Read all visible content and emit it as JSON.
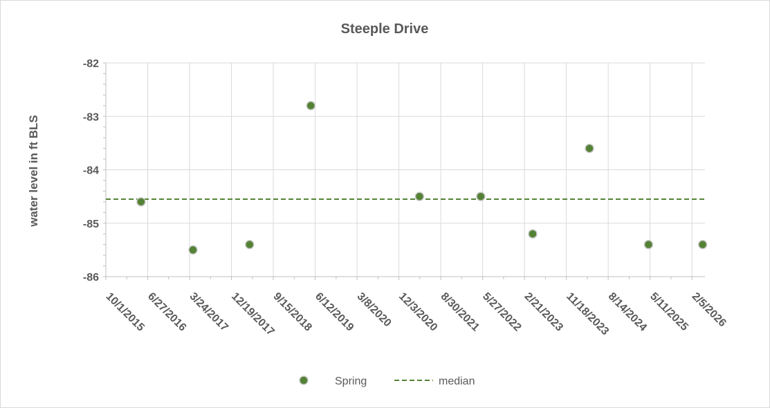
{
  "chart_data": {
    "type": "scatter",
    "title": "Steeple Drive",
    "xlabel": "",
    "ylabel": "water level  in ft BLS",
    "x_axis_type": "date",
    "xlim": [
      "10/1/2015",
      "4/30/2026"
    ],
    "x_ticks": [
      "10/1/2015",
      "6/27/2016",
      "3/24/2017",
      "12/19/2017",
      "9/15/2018",
      "6/12/2019",
      "3/8/2020",
      "12/3/2020",
      "8/30/2021",
      "5/27/2022",
      "2/21/2023",
      "11/18/2023",
      "8/14/2024",
      "5/11/2025",
      "2/5/2026"
    ],
    "ylim": [
      -86,
      -82
    ],
    "y_ticks": [
      -82,
      -83,
      -84,
      -85,
      -86
    ],
    "grid": true,
    "legend": "bottom",
    "series": [
      {
        "name": "Spring",
        "kind": "points",
        "color": "#548235",
        "points": [
          {
            "x": "5/15/2016",
            "y": -84.6
          },
          {
            "x": "4/15/2017",
            "y": -85.5
          },
          {
            "x": "4/15/2018",
            "y": -85.4
          },
          {
            "x": "5/15/2019",
            "y": -82.8
          },
          {
            "x": "4/15/2021",
            "y": -84.5
          },
          {
            "x": "5/15/2022",
            "y": -84.5
          },
          {
            "x": "4/15/2023",
            "y": -85.2
          },
          {
            "x": "4/15/2024",
            "y": -83.6
          },
          {
            "x": "5/1/2025",
            "y": -85.4
          },
          {
            "x": "4/15/2026",
            "y": -85.4
          }
        ]
      },
      {
        "name": "median",
        "kind": "dashed-line",
        "color": "#548235",
        "y": -84.55
      }
    ]
  }
}
